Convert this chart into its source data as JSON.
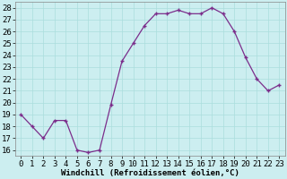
{
  "x": [
    0,
    1,
    2,
    3,
    4,
    5,
    6,
    7,
    8,
    9,
    10,
    11,
    12,
    13,
    14,
    15,
    16,
    17,
    18,
    19,
    20,
    21,
    22,
    23
  ],
  "y": [
    19,
    18,
    17,
    18.5,
    18.5,
    16,
    15.8,
    16,
    19.8,
    23.5,
    25,
    26.5,
    27.5,
    27.5,
    27.8,
    27.5,
    27.5,
    28,
    27.5,
    26,
    23.8,
    22,
    21,
    21.5
  ],
  "line_color": "#7b2d8b",
  "marker_color": "#7b2d8b",
  "bg_color": "#cceef0",
  "grid_color": "#aadddd",
  "xlabel": "Windchill (Refroidissement éolien,°C)",
  "ylabel_ticks": [
    16,
    17,
    18,
    19,
    20,
    21,
    22,
    23,
    24,
    25,
    26,
    27,
    28
  ],
  "xlim": [
    -0.5,
    23.5
  ],
  "ylim": [
    15.5,
    28.5
  ],
  "xticks": [
    0,
    1,
    2,
    3,
    4,
    5,
    6,
    7,
    8,
    9,
    10,
    11,
    12,
    13,
    14,
    15,
    16,
    17,
    18,
    19,
    20,
    21,
    22,
    23
  ],
  "xlabel_fontsize": 6.5,
  "tick_fontsize": 6.5
}
